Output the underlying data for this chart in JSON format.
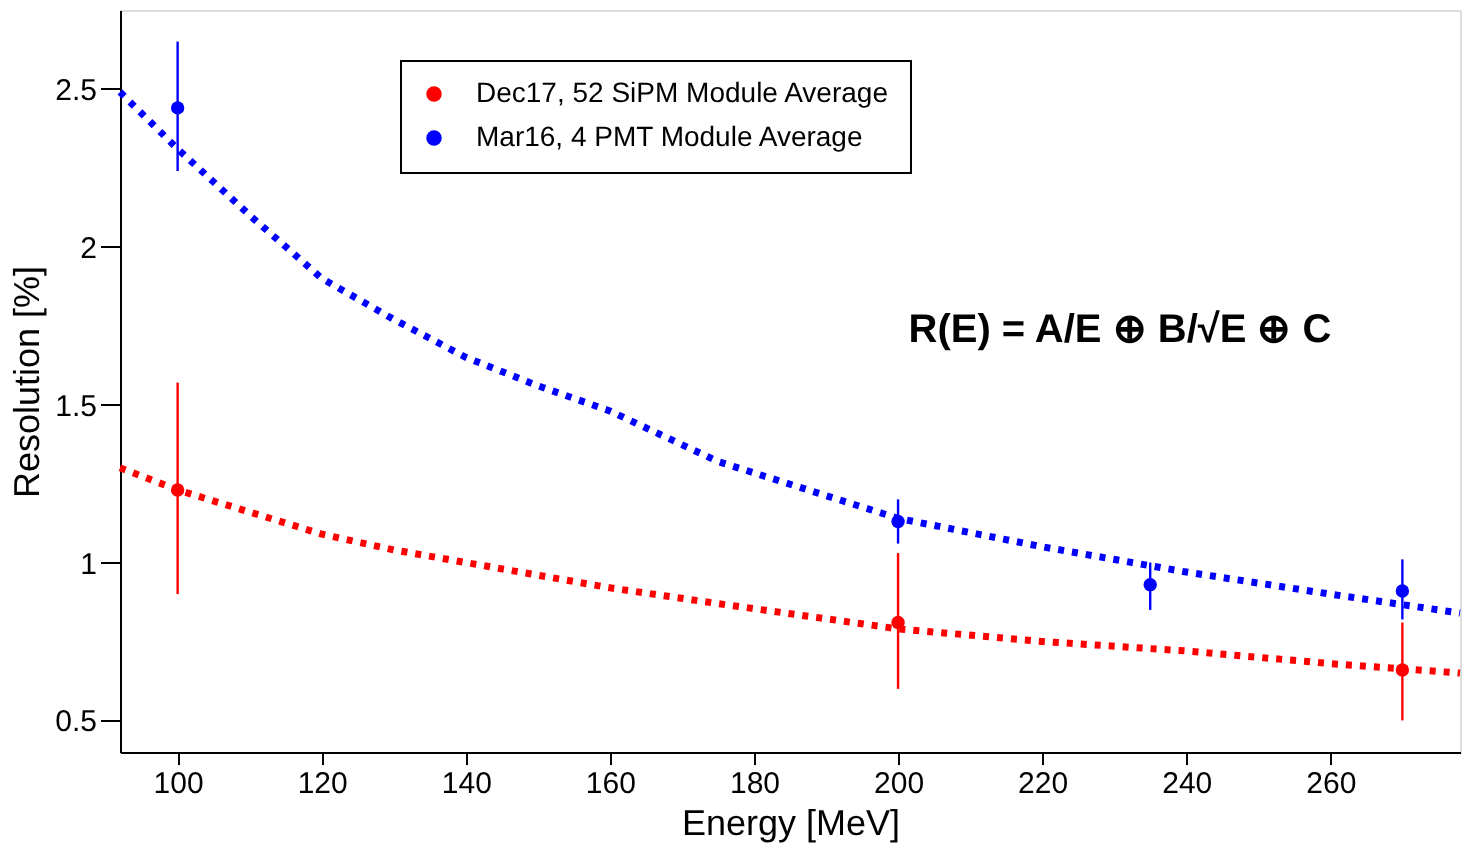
{
  "chart_data": {
    "type": "scatter",
    "xlabel": "Energy [MeV]",
    "ylabel": "Resolution [%]",
    "xlim": [
      92,
      278
    ],
    "xticks": [
      100,
      120,
      140,
      160,
      180,
      200,
      220,
      240,
      260
    ],
    "ylim": [
      0.4,
      2.75
    ],
    "yticks": [
      0.5,
      1,
      1.5,
      2,
      2.5
    ],
    "grid": false,
    "legend": "top",
    "marker": "circle",
    "annotations": [
      "R(E) = A/E ⊕ B/√E ⊕ C"
    ],
    "series": [
      {
        "name": "Dec17, 52 SiPM Module Average",
        "color": "#ff0000",
        "x": [
          100,
          200,
          270
        ],
        "values": [
          1.23,
          0.81,
          0.66
        ],
        "errors": [
          [
            0.9,
            1.57
          ],
          [
            0.6,
            1.03
          ],
          [
            0.5,
            0.81
          ]
        ]
      },
      {
        "name": "Mar16, 4 PMT Module Average",
        "color": "#0000ff",
        "x": [
          100,
          200,
          235,
          270
        ],
        "values": [
          2.44,
          1.13,
          0.93,
          0.91
        ],
        "errors": [
          [
            2.24,
            2.65
          ],
          [
            1.06,
            1.2
          ],
          [
            0.85,
            1.0
          ],
          [
            0.82,
            1.01
          ]
        ]
      },
      {
        "type": "line",
        "line_style": "dotted",
        "marker": "none",
        "color": "#ff0000",
        "x": [
          92,
          100,
          110,
          120,
          130,
          140,
          150,
          160,
          175,
          200,
          220,
          240,
          260,
          278
        ],
        "values": [
          1.3,
          1.23,
          1.16,
          1.09,
          1.04,
          1.0,
          0.96,
          0.92,
          0.87,
          0.79,
          0.75,
          0.72,
          0.68,
          0.65
        ]
      },
      {
        "type": "line",
        "line_style": "dotted",
        "marker": "none",
        "color": "#0000ff",
        "x": [
          92,
          100,
          110,
          120,
          130,
          140,
          150,
          160,
          175,
          200,
          220,
          240,
          260,
          278
        ],
        "values": [
          2.49,
          2.31,
          2.1,
          1.9,
          1.77,
          1.65,
          1.56,
          1.48,
          1.32,
          1.14,
          1.05,
          0.97,
          0.9,
          0.84
        ]
      }
    ]
  }
}
